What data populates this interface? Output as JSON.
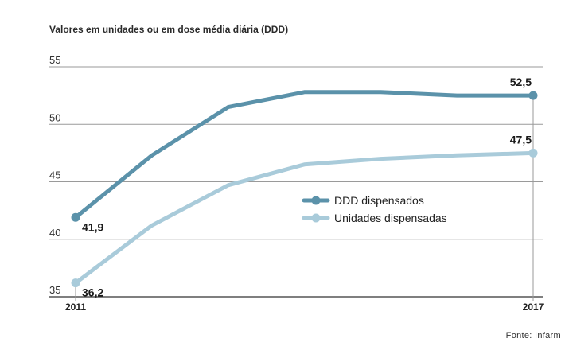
{
  "header": {
    "subtitle": "Valores em unidades ou em dose média diária (DDD)"
  },
  "footer": {
    "source": "Fonte: Infarm"
  },
  "chart_data": {
    "type": "line",
    "title": "",
    "subtitle": "Valores em unidades ou em dose média diária (DDD)",
    "x": [
      2011,
      2012,
      2013,
      2014,
      2015,
      2016,
      2017
    ],
    "x_tick_labels": [
      "2011",
      "2017"
    ],
    "ylim": [
      35,
      55
    ],
    "y_ticks": [
      35,
      40,
      45,
      50,
      55
    ],
    "grid": true,
    "legend_placement": "center-right",
    "series": [
      {
        "name": "DDD dispensados",
        "color": "#5b92aa",
        "values": [
          41.9,
          47.3,
          51.5,
          52.8,
          52.8,
          52.5,
          52.5
        ],
        "labels": [
          {
            "index": 0,
            "text": "41,9"
          },
          {
            "index": 6,
            "text": "52,5"
          }
        ]
      },
      {
        "name": "Unidades dispensadas",
        "color": "#a9cbda",
        "values": [
          36.2,
          41.2,
          44.7,
          46.5,
          47.0,
          47.3,
          47.5
        ],
        "labels": [
          {
            "index": 0,
            "text": "36,2"
          },
          {
            "index": 6,
            "text": "47,5"
          }
        ]
      }
    ]
  }
}
